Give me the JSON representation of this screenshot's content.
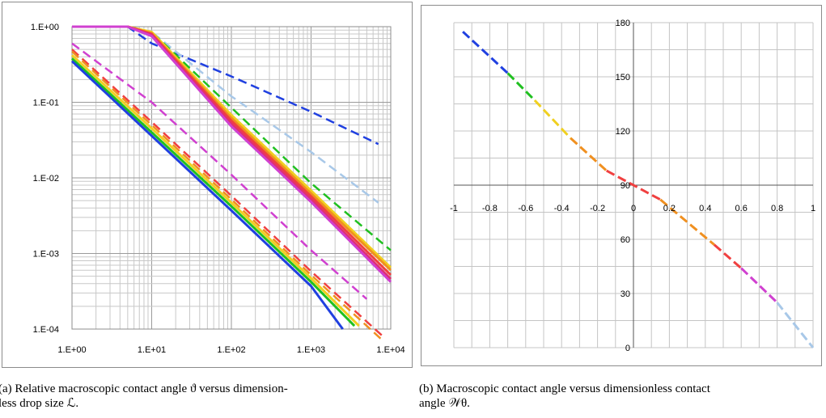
{
  "captions": {
    "a_line1": "(a) Relative macroscopic contact angle ϑ versus dimension-",
    "a_line2": "less drop size ℒ.",
    "b_line1": "(b) Macroscopic contact angle versus dimensionless contact",
    "b_line2": "angle 𝒲θ."
  },
  "chart_data": [
    {
      "type": "line",
      "title": "",
      "xlabel": "",
      "ylabel": "",
      "xscale": "log",
      "yscale": "log",
      "xlim": [
        1,
        10000
      ],
      "ylim": [
        0.0001,
        1
      ],
      "x_tick_labels": [
        "1.E+00",
        "1.E+01",
        "1.E+02",
        "1.E+03",
        "1.E+04"
      ],
      "y_tick_labels": [
        "1.E+00",
        "1.E-01",
        "1.E-02",
        "1.E-03",
        "1.E-04"
      ],
      "grid": true,
      "series": [
        {
          "color": "#2040e0",
          "dash": true,
          "points": [
            [
              1,
              1
            ],
            [
              5,
              1
            ],
            [
              10,
              0.6
            ],
            [
              100,
              0.22
            ],
            [
              1000,
              0.075
            ],
            [
              7000,
              0.028
            ]
          ]
        },
        {
          "color": "#a8c8e8",
          "dash": true,
          "points": [
            [
              1,
              1
            ],
            [
              5,
              1
            ],
            [
              10,
              0.85
            ],
            [
              100,
              0.12
            ],
            [
              1000,
              0.022
            ],
            [
              7000,
              0.0047
            ]
          ]
        },
        {
          "color": "#20c020",
          "dash": true,
          "points": [
            [
              1,
              1
            ],
            [
              5,
              1
            ],
            [
              10,
              0.85
            ],
            [
              100,
              0.085
            ],
            [
              1000,
              0.0085
            ],
            [
              10000,
              0.0011
            ]
          ]
        },
        {
          "color": "#f0d020",
          "dash": false,
          "points": [
            [
              1,
              1
            ],
            [
              5,
              1
            ],
            [
              10,
              0.85
            ],
            [
              100,
              0.068
            ],
            [
              1000,
              0.0068
            ],
            [
              10000,
              0.00065
            ]
          ]
        },
        {
          "color": "#f09020",
          "dash": false,
          "points": [
            [
              1,
              1
            ],
            [
              5,
              1
            ],
            [
              10,
              0.82
            ],
            [
              100,
              0.062
            ],
            [
              1000,
              0.0062
            ],
            [
              10000,
              0.0006
            ]
          ]
        },
        {
          "color": "#f04040",
          "dash": false,
          "points": [
            [
              1,
              1
            ],
            [
              5,
              1
            ],
            [
              10,
              0.8
            ],
            [
              100,
              0.057
            ],
            [
              1000,
              0.0057
            ],
            [
              10000,
              0.00052
            ]
          ]
        },
        {
          "color": "#e03070",
          "dash": false,
          "points": [
            [
              1,
              1
            ],
            [
              5,
              1
            ],
            [
              10,
              0.78
            ],
            [
              100,
              0.052
            ],
            [
              1000,
              0.0052
            ],
            [
              10000,
              0.00046
            ]
          ]
        },
        {
          "color": "#d040d0",
          "dash": false,
          "points": [
            [
              1,
              1
            ],
            [
              5,
              1
            ],
            [
              10,
              0.75
            ],
            [
              100,
              0.048
            ],
            [
              1000,
              0.0048
            ],
            [
              10000,
              0.00042
            ]
          ]
        },
        {
          "color": "#d040d0",
          "dash": true,
          "points": [
            [
              1,
              0.6
            ],
            [
              10,
              0.1
            ],
            [
              100,
              0.011
            ],
            [
              1000,
              0.0011
            ],
            [
              5000,
              0.00025
            ]
          ]
        },
        {
          "color": "#f04040",
          "dash": true,
          "points": [
            [
              1,
              0.5
            ],
            [
              10,
              0.055
            ],
            [
              100,
              0.0058
            ],
            [
              1000,
              0.00058
            ],
            [
              8000,
              8e-05
            ]
          ]
        },
        {
          "color": "#f09020",
          "dash": true,
          "points": [
            [
              1,
              0.47
            ],
            [
              10,
              0.05
            ],
            [
              100,
              0.0052
            ],
            [
              1000,
              0.00052
            ],
            [
              8000,
              7e-05
            ]
          ]
        },
        {
          "color": "#f0d020",
          "dash": false,
          "points": [
            [
              1,
              0.42
            ],
            [
              10,
              0.045
            ],
            [
              100,
              0.0047
            ],
            [
              1000,
              0.00047
            ],
            [
              4000,
              0.00011
            ]
          ]
        },
        {
          "color": "#20c020",
          "dash": false,
          "points": [
            [
              1,
              0.38
            ],
            [
              10,
              0.04
            ],
            [
              100,
              0.0042
            ],
            [
              1000,
              0.00042
            ],
            [
              3500,
              0.00011
            ]
          ]
        },
        {
          "color": "#2040e0",
          "dash": false,
          "points": [
            [
              1,
              0.35
            ],
            [
              10,
              0.036
            ],
            [
              100,
              0.0037
            ],
            [
              1000,
              0.00037
            ],
            [
              2500,
              0.0001
            ]
          ]
        }
      ]
    },
    {
      "type": "line",
      "title": "",
      "xlabel": "",
      "ylabel": "",
      "xlim": [
        -1,
        1
      ],
      "ylim": [
        0,
        180
      ],
      "x_tick_labels": [
        "-1",
        "-0.8",
        "-0.6",
        "-0.4",
        "-0.2",
        "0",
        "0.2",
        "0.4",
        "0.6",
        "0.8",
        "1"
      ],
      "y_tick_labels": [
        "180",
        "150",
        "120",
        "90",
        "60",
        "30",
        "0"
      ],
      "grid": true,
      "series": [
        {
          "color": "#2040e0",
          "dash": true,
          "points": [
            [
              -0.95,
              175
            ],
            [
              -0.7,
              152
            ]
          ]
        },
        {
          "color": "#20c020",
          "dash": true,
          "points": [
            [
              -0.7,
              152
            ],
            [
              -0.55,
              137
            ]
          ]
        },
        {
          "color": "#f0d020",
          "dash": true,
          "points": [
            [
              -0.55,
              137
            ],
            [
              -0.35,
              116
            ]
          ]
        },
        {
          "color": "#f09020",
          "dash": true,
          "points": [
            [
              -0.35,
              116
            ],
            [
              -0.15,
              98
            ]
          ]
        },
        {
          "color": "#f04040",
          "dash": true,
          "points": [
            [
              -0.15,
              98
            ],
            [
              0.15,
              82
            ]
          ]
        },
        {
          "color": "#f09020",
          "dash": true,
          "points": [
            [
              0.15,
              82
            ],
            [
              0.45,
              57
            ]
          ]
        },
        {
          "color": "#f04040",
          "dash": true,
          "points": [
            [
              0.45,
              57
            ],
            [
              0.6,
              44
            ]
          ]
        },
        {
          "color": "#d040d0",
          "dash": true,
          "points": [
            [
              0.6,
              44
            ],
            [
              0.8,
              25
            ]
          ]
        },
        {
          "color": "#a8c8e8",
          "dash": true,
          "points": [
            [
              0.8,
              25
            ],
            [
              1,
              0
            ]
          ]
        }
      ]
    }
  ]
}
